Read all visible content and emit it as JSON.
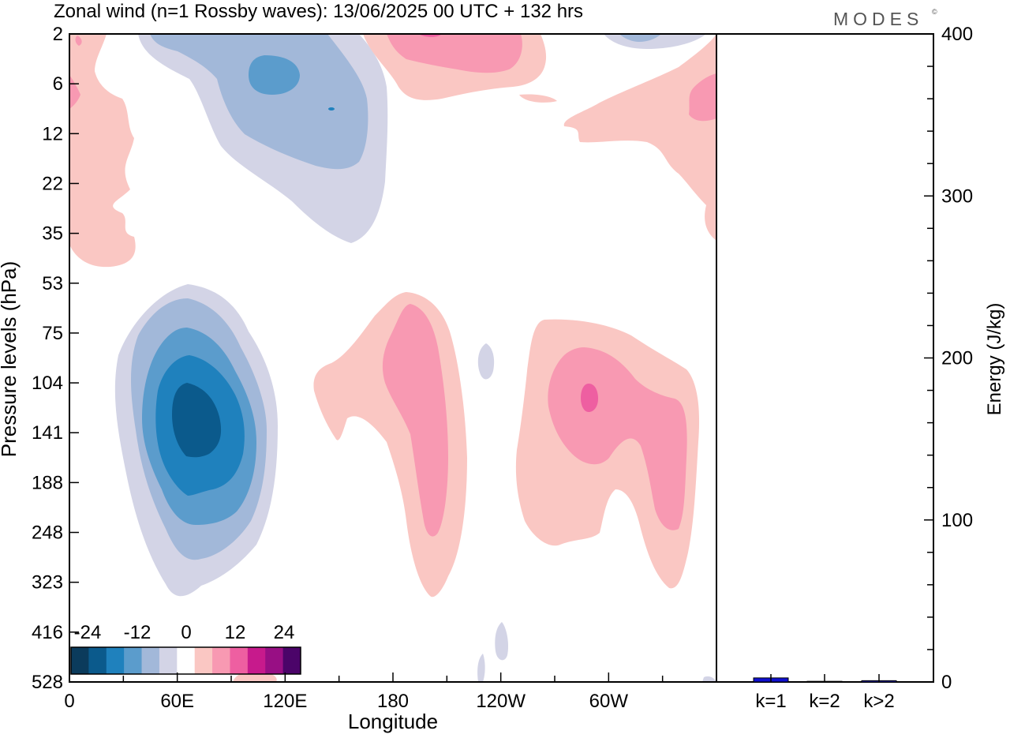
{
  "chart_data": [
    {
      "type": "heatmap",
      "title": "Zonal wind (n=1 Rossby waves):  13/06/2025  00 UTC  + 132 hrs",
      "brand": "MODES",
      "brand_mark": "©",
      "xlabel": "Longitude",
      "ylabel": "Pressure levels (hPa)",
      "x_ticks": [
        "0",
        "60E",
        "120E",
        "180",
        "120W",
        "60W"
      ],
      "y_ticks": [
        "2",
        "6",
        "12",
        "22",
        "35",
        "53",
        "75",
        "104",
        "141",
        "188",
        "248",
        "323",
        "416",
        "528"
      ],
      "y_scale": "log",
      "grid": false,
      "colorbar": {
        "labels": [
          "-24",
          "-12",
          "0",
          "12",
          "24"
        ],
        "placement": "bottom-left",
        "colors": [
          "#0b3b5c",
          "#0b5a8c",
          "#1f81bd",
          "#5b9ccc",
          "#a2b8d9",
          "#d3d4e6",
          "#ffffff",
          "#fac7c3",
          "#f899b2",
          "#ee5fa1",
          "#c71a8c",
          "#980f84",
          "#4b0469"
        ]
      },
      "contour_features": [
        {
          "name": "negative anomaly, lower stratosphere/troposphere",
          "center_lon": "70E",
          "center_hPa": 130,
          "min_value": -24
        },
        {
          "name": "negative anomaly, upper stratosphere",
          "center_lon": "90E",
          "center_hPa": 8,
          "min_value": -12
        },
        {
          "name": "positive anomaly",
          "center_lon": "175W",
          "center_hPa": 150,
          "max_value": 12
        },
        {
          "name": "positive anomaly",
          "center_lon": "60W",
          "center_hPa": 115,
          "max_value": 16
        },
        {
          "name": "positive anomaly, upper stratosphere",
          "center_lon": "160W",
          "center_hPa": 4,
          "max_value": 8
        }
      ]
    },
    {
      "type": "bar",
      "categories": [
        "k=1",
        "k=2",
        "k>2"
      ],
      "values": [
        2.5,
        0.4,
        0.8
      ],
      "ylabel": "Energy (J/kg)",
      "ylim": [
        0,
        400
      ],
      "y_ticks": [
        "0",
        "100",
        "200",
        "300",
        "400"
      ],
      "bar_color": "#1010d0"
    }
  ]
}
